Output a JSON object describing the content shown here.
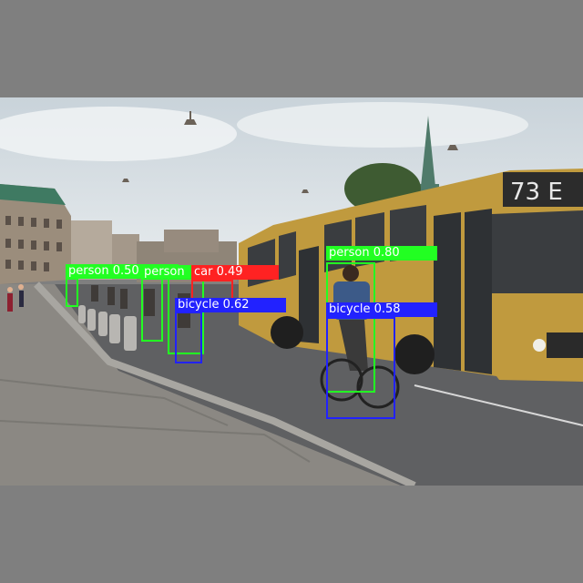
{
  "image": {
    "description_free": true,
    "colors": {
      "pad": "#7f7f7f",
      "sky": "#dfe6ea",
      "road": "#5c5d5e",
      "pavement": "#8a8783",
      "bus": "#c49a3a",
      "person": "#22ff22",
      "car": "#ff2222",
      "bicycle": "#2222ff"
    }
  },
  "overlay": {
    "bus_sign": "73 E",
    "detections": [
      {
        "label": "person 0.50",
        "class": "person"
      },
      {
        "label": "person",
        "class": "person"
      },
      {
        "label": "car 0.49",
        "class": "car"
      },
      {
        "label": "bicycle 0.62",
        "class": "bicycle"
      },
      {
        "label": "person 0.80",
        "class": "person"
      },
      {
        "label": "bicycle 0.58",
        "class": "bicycle"
      }
    ]
  }
}
